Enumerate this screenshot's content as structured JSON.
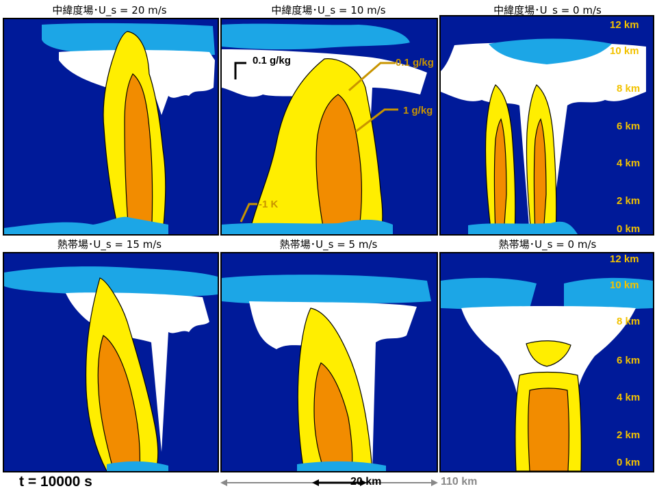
{
  "time_label": "t = 10000 s",
  "altitude_labels": [
    "12 km",
    "10 km",
    "8 km",
    "6 km",
    "4 km",
    "2 km",
    "0  km"
  ],
  "scale": {
    "short": "20 km",
    "long": "110 km"
  },
  "annotations": {
    "mixing_ratio_small_black": "0.1 g/kg",
    "mixing_ratio_small_gold": "0.1 g/kg",
    "mixing_ratio_large": "1 g/kg",
    "temperature": "-1 K"
  },
  "colors": {
    "background": "#001a99",
    "anvil_light_blue": "#1ca6e6",
    "cloud_white": "#ffffff",
    "contour_yellow": "#ffee00",
    "contour_orange": "#f28c00",
    "label_gold": "#f2c200",
    "annotation_gold": "#c89400"
  },
  "chart_data": [
    {
      "type": "heatmap",
      "title": "中緯度場･U_s = 20 m/s",
      "regime": "mid-latitude",
      "shear_ms": 20
    },
    {
      "type": "heatmap",
      "title": "中緯度場･U_s = 10 m/s",
      "regime": "mid-latitude",
      "shear_ms": 10
    },
    {
      "type": "heatmap",
      "title": "中緯度場･U_s = 0 m/s",
      "regime": "mid-latitude",
      "shear_ms": 0
    },
    {
      "type": "heatmap",
      "title": "熱帯場･U_s = 15 m/s",
      "regime": "tropical",
      "shear_ms": 15
    },
    {
      "type": "heatmap",
      "title": "熱帯場･U_s = 5 m/s",
      "regime": "tropical",
      "shear_ms": 5
    },
    {
      "type": "heatmap",
      "title": "熱帯場･U_s = 0 m/s",
      "regime": "tropical",
      "shear_ms": 0
    }
  ]
}
